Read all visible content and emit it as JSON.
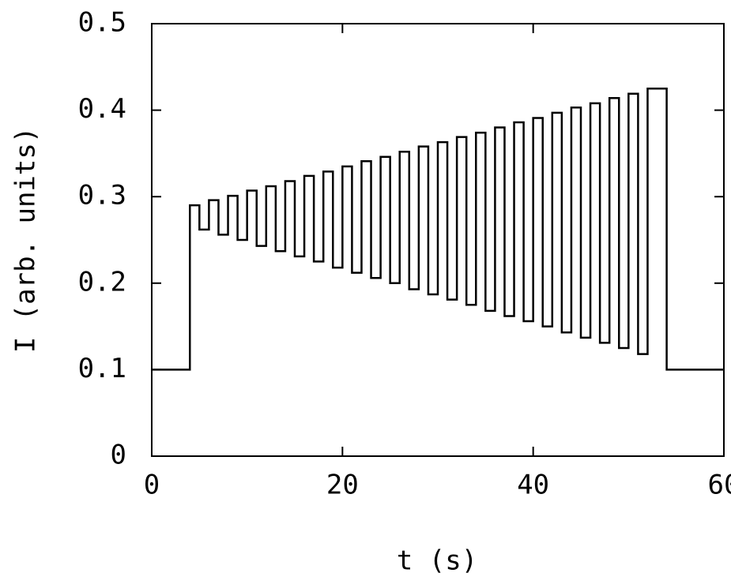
{
  "chart_data": {
    "type": "line",
    "xlabel": "t (s)",
    "ylabel": "I (arb. units)",
    "color": "#000000",
    "x": [
      0,
      4,
      4,
      5,
      5,
      6,
      6,
      7,
      7,
      8,
      8,
      9,
      9,
      10,
      10,
      11,
      11,
      12,
      12,
      13,
      13,
      14,
      14,
      15,
      15,
      16,
      16,
      17,
      17,
      18,
      18,
      19,
      19,
      20,
      20,
      21,
      21,
      22,
      22,
      23,
      23,
      24,
      24,
      25,
      25,
      26,
      26,
      27,
      27,
      28,
      28,
      29,
      29,
      30,
      30,
      31,
      31,
      32,
      32,
      33,
      33,
      34,
      34,
      35,
      35,
      36,
      36,
      37,
      37,
      38,
      38,
      39,
      39,
      40,
      40,
      41,
      41,
      42,
      42,
      43,
      43,
      44,
      44,
      45,
      45,
      46,
      46,
      47,
      47,
      48,
      48,
      49,
      49,
      50,
      50,
      51,
      51,
      52,
      52,
      54,
      54,
      60
    ],
    "values": [
      0.1,
      0.1,
      0.29,
      0.29,
      0.262,
      0.262,
      0.296,
      0.296,
      0.256,
      0.256,
      0.301,
      0.301,
      0.25,
      0.25,
      0.307,
      0.307,
      0.243,
      0.243,
      0.312,
      0.312,
      0.237,
      0.237,
      0.318,
      0.318,
      0.231,
      0.231,
      0.324,
      0.324,
      0.225,
      0.225,
      0.329,
      0.329,
      0.218,
      0.218,
      0.335,
      0.335,
      0.212,
      0.212,
      0.341,
      0.341,
      0.206,
      0.206,
      0.346,
      0.346,
      0.2,
      0.2,
      0.352,
      0.352,
      0.193,
      0.193,
      0.358,
      0.358,
      0.187,
      0.187,
      0.363,
      0.363,
      0.181,
      0.181,
      0.369,
      0.369,
      0.175,
      0.175,
      0.374,
      0.374,
      0.168,
      0.168,
      0.38,
      0.38,
      0.162,
      0.162,
      0.386,
      0.386,
      0.156,
      0.156,
      0.391,
      0.391,
      0.15,
      0.15,
      0.397,
      0.397,
      0.143,
      0.143,
      0.403,
      0.403,
      0.137,
      0.137,
      0.408,
      0.408,
      0.131,
      0.131,
      0.414,
      0.414,
      0.125,
      0.125,
      0.419,
      0.419,
      0.118,
      0.118,
      0.425,
      0.425,
      0.1,
      0.1
    ],
    "xlim": [
      0,
      60
    ],
    "xticks": [
      0,
      20,
      40,
      60
    ],
    "ylim": [
      0,
      0.5
    ],
    "yticks": [
      0,
      0.1,
      0.2,
      0.3,
      0.4,
      0.5
    ]
  }
}
